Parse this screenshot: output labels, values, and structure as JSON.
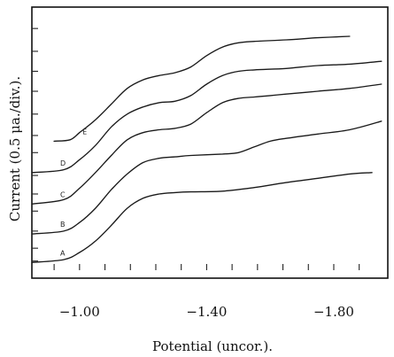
{
  "chart_data": {
    "type": "line",
    "xlabel": "Potential (uncor.).",
    "ylabel": "Current (0.5 μa./div.).",
    "x_tick_labels": [
      "-1.00",
      "-1.40",
      "-1.80"
    ],
    "x_tick_values": [
      -1.0,
      -1.4,
      -1.8
    ],
    "xlim": [
      -0.85,
      -1.97
    ],
    "y_units": "divisions (0.5 μa./div.)",
    "ylim": [
      0,
      19
    ],
    "x_minor_tick_values": [
      -0.92,
      -1.0,
      -1.08,
      -1.16,
      -1.24,
      -1.32,
      -1.4,
      -1.48,
      -1.56,
      -1.64,
      -1.72,
      -1.8,
      -1.88
    ],
    "y_minor_tick_values": [
      1.2,
      2.1,
      3.3,
      4.7,
      5.9,
      7.2,
      8.8,
      10.0,
      11.5,
      13.1,
      14.5,
      15.9,
      17.5
    ],
    "grid": false,
    "legend": "none (curves labeled at left ends)",
    "series": [
      {
        "name": "A",
        "x": [
          -0.85,
          -0.95,
          -1.0,
          -1.05,
          -1.1,
          -1.15,
          -1.2,
          -1.25,
          -1.3,
          -1.35,
          -1.45,
          -1.55,
          -1.65,
          -1.75,
          -1.85,
          -1.92
        ],
        "y": [
          1.1,
          1.3,
          1.8,
          2.6,
          3.7,
          4.9,
          5.6,
          5.9,
          6.0,
          6.05,
          6.1,
          6.35,
          6.7,
          7.0,
          7.3,
          7.4
        ]
      },
      {
        "name": "B",
        "x": [
          -0.85,
          -0.95,
          -1.0,
          -1.05,
          -1.1,
          -1.15,
          -1.2,
          -1.25,
          -1.3,
          -1.35,
          -1.45,
          -1.5,
          -1.55,
          -1.6,
          -1.65,
          -1.75,
          -1.85,
          -1.95
        ],
        "y": [
          3.1,
          3.3,
          3.9,
          4.9,
          6.2,
          7.3,
          8.1,
          8.4,
          8.5,
          8.6,
          8.7,
          8.8,
          9.2,
          9.6,
          9.8,
          10.1,
          10.4,
          11.0
        ]
      },
      {
        "name": "C",
        "x": [
          -0.85,
          -0.95,
          -1.0,
          -1.05,
          -1.1,
          -1.15,
          -1.2,
          -1.25,
          -1.3,
          -1.35,
          -1.4,
          -1.45,
          -1.5,
          -1.55,
          -1.6,
          -1.65,
          -1.75,
          -1.85,
          -1.95
        ],
        "y": [
          5.2,
          5.5,
          6.3,
          7.4,
          8.6,
          9.7,
          10.2,
          10.4,
          10.5,
          10.8,
          11.6,
          12.3,
          12.6,
          12.7,
          12.8,
          12.9,
          13.1,
          13.3,
          13.6
        ]
      },
      {
        "name": "D",
        "x": [
          -0.85,
          -0.95,
          -1.0,
          -1.05,
          -1.1,
          -1.15,
          -1.2,
          -1.25,
          -1.3,
          -1.35,
          -1.4,
          -1.45,
          -1.5,
          -1.55,
          -1.65,
          -1.75,
          -1.85,
          -1.95
        ],
        "y": [
          7.4,
          7.6,
          8.3,
          9.3,
          10.6,
          11.5,
          12.0,
          12.3,
          12.4,
          12.8,
          13.6,
          14.2,
          14.5,
          14.6,
          14.7,
          14.9,
          15.0,
          15.2
        ]
      },
      {
        "name": "E",
        "x": [
          -0.92,
          -0.97,
          -1.0,
          -1.05,
          -1.1,
          -1.15,
          -1.2,
          -1.25,
          -1.3,
          -1.35,
          -1.4,
          -1.45,
          -1.5,
          -1.55,
          -1.65,
          -1.75,
          -1.85
        ],
        "y": [
          9.6,
          9.7,
          10.2,
          11.1,
          12.2,
          13.3,
          13.9,
          14.2,
          14.4,
          14.8,
          15.6,
          16.2,
          16.5,
          16.6,
          16.7,
          16.85,
          16.95
        ]
      }
    ]
  }
}
